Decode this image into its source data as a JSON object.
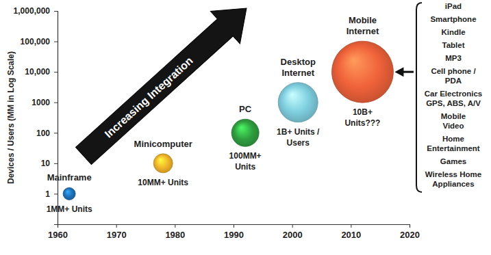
{
  "chart_data": {
    "type": "bubble",
    "y_label": "Devices / Users (MM in Log Scale)",
    "log": "y",
    "grid": false,
    "x": [
      1962,
      1978,
      1992,
      2001,
      2012
    ],
    "values": [
      1,
      10,
      100,
      1000,
      10000
    ],
    "sizes": [
      18,
      28,
      40,
      58,
      90
    ],
    "colors": [
      "#1e6fb8",
      "#f0b429",
      "#2f9e3f",
      "#7fcfe0",
      "#f0623a"
    ],
    "point_labels": [
      [
        "Mainframe"
      ],
      [
        "Minicomputer"
      ],
      [
        "PC"
      ],
      [
        "Desktop",
        "Internet"
      ],
      [
        "Mobile",
        "Internet"
      ]
    ],
    "point_notes": [
      [
        "1MM+ Units"
      ],
      [
        "10MM+ Units"
      ],
      [
        "100MM+",
        "Units"
      ],
      [
        "1B+ Units /",
        "Users"
      ],
      [
        "10B+",
        "Units???"
      ]
    ],
    "xlim": [
      1960,
      2020
    ],
    "xticks": [
      1960,
      1970,
      1980,
      1990,
      2000,
      2010,
      2020
    ],
    "ylim": [
      0.1,
      1000000
    ],
    "yticks": [
      1,
      10,
      100,
      1000,
      {
        "value": 10000,
        "label": "10,000"
      },
      {
        "value": 100000,
        "label": "100,000"
      },
      {
        "value": 1000000,
        "label": "1,000,000"
      }
    ],
    "annotations": [
      {
        "text": "Increasing Integration"
      }
    ],
    "side_list": [
      [
        "iPad"
      ],
      [
        "Smartphone"
      ],
      [
        "Kindle"
      ],
      [
        "Tablet"
      ],
      [
        "MP3"
      ],
      [
        "Cell phone /",
        "PDA"
      ],
      [
        "Car Electronics",
        "GPS, ABS, A/V"
      ],
      [
        "Mobile",
        "Video"
      ],
      [
        "Home",
        "Entertainment"
      ],
      [
        "Games"
      ],
      [
        "Wireless Home",
        "Appliances"
      ]
    ]
  }
}
